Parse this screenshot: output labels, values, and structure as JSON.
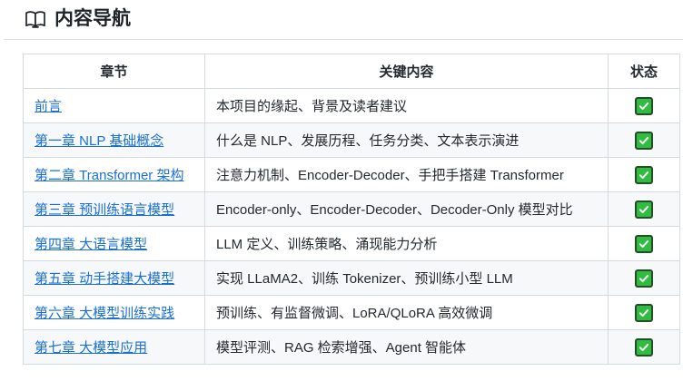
{
  "header": {
    "title": "内容导航",
    "icon": "open-book"
  },
  "table": {
    "columns": [
      "章节",
      "关键内容",
      "状态"
    ],
    "rows": [
      {
        "chapter": "前言",
        "content": "本项目的缘起、背景及读者建议",
        "status": "done"
      },
      {
        "chapter": "第一章 NLP 基础概念",
        "content": "什么是 NLP、发展历程、任务分类、文本表示演进",
        "status": "done"
      },
      {
        "chapter": "第二章 Transformer 架构",
        "content": "注意力机制、Encoder-Decoder、手把手搭建 Transformer",
        "status": "done"
      },
      {
        "chapter": "第三章 预训练语言模型",
        "content": "Encoder-only、Encoder-Decoder、Decoder-Only 模型对比",
        "status": "done"
      },
      {
        "chapter": "第四章 大语言模型",
        "content": "LLM 定义、训练策略、涌现能力分析",
        "status": "done"
      },
      {
        "chapter": "第五章 动手搭建大模型",
        "content": "实现 LLaMA2、训练 Tokenizer、预训练小型 LLM",
        "status": "done"
      },
      {
        "chapter": "第六章 大模型训练实践",
        "content": "预训练、有监督微调、LoRA/QLoRA 高效微调",
        "status": "done"
      },
      {
        "chapter": "第七章 大模型应用",
        "content": "模型评测、RAG 检索增强、Agent 智能体",
        "status": "done"
      }
    ]
  },
  "colors": {
    "link": "#1a6fd4",
    "check_green": "#2ebd3f",
    "check_border": "#254d27",
    "table_border": "#d3dae0",
    "stripe": "#f6f8fa",
    "text": "#24292f"
  }
}
